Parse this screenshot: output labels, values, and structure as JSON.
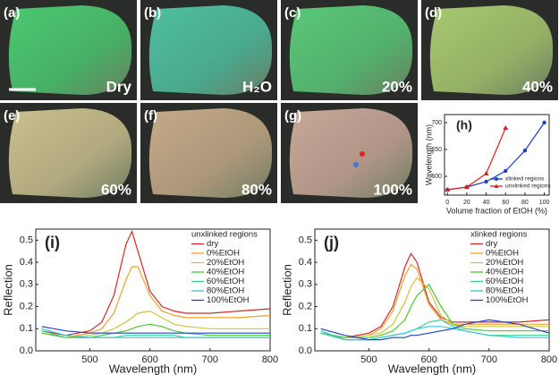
{
  "photos": [
    {
      "label": "(a)",
      "caption": "Dry"
    },
    {
      "label": "(b)",
      "caption": "H₂O"
    },
    {
      "label": "(c)",
      "caption": "20%"
    },
    {
      "label": "(d)",
      "caption": "40%"
    },
    {
      "label": "(e)",
      "caption": "60%"
    },
    {
      "label": "(f)",
      "caption": "80%"
    },
    {
      "label": "(g)",
      "caption": "100%"
    }
  ],
  "chart_data": [
    {
      "type": "line",
      "panel_label": "(h)",
      "xlabel": "Volume fraction of EtOH (%)",
      "ylabel": "Wavelength (nm)",
      "x": [
        0,
        20,
        40,
        60,
        80,
        100
      ],
      "xlim": [
        -3,
        105
      ],
      "ylim": [
        565,
        715
      ],
      "xticks": [
        0,
        20,
        40,
        60,
        80,
        100
      ],
      "yticks": [
        600,
        650,
        700
      ],
      "legend": "lower right",
      "series": [
        {
          "name": "xlinked regions",
          "color": "#1f3fbf",
          "marker": "circle",
          "values": [
            575,
            580,
            590,
            610,
            648,
            700
          ]
        },
        {
          "name": "unxlinked regions",
          "color": "#e02020",
          "marker": "triangle",
          "values": [
            575,
            580,
            605,
            690,
            null,
            null
          ]
        }
      ]
    },
    {
      "type": "line",
      "panel_label": "(i)",
      "xlabel": "Wavelength (nm)",
      "ylabel": "Reflection",
      "legend_title": "unxlinked regions",
      "legend": "upper right",
      "x": [
        420,
        460,
        500,
        520,
        540,
        560,
        570,
        580,
        600,
        620,
        640,
        660,
        700,
        750,
        800
      ],
      "xlim": [
        410,
        800
      ],
      "ylim": [
        0,
        0.55
      ],
      "xticks": [
        500,
        600,
        700,
        800
      ],
      "yticks": [
        {
          "value": 0,
          "label": "0.0"
        },
        {
          "value": 0.1,
          "label": "0.1"
        },
        {
          "value": 0.2,
          "label": "0.2"
        },
        {
          "value": 0.3,
          "label": "0.3"
        },
        {
          "value": 0.4,
          "label": "0.4"
        },
        {
          "value": 0.5,
          "label": "0.5"
        }
      ],
      "series": [
        {
          "name": "dry",
          "color": "#d62728",
          "values": [
            0.09,
            0.07,
            0.09,
            0.13,
            0.25,
            0.48,
            0.54,
            0.45,
            0.27,
            0.2,
            0.18,
            0.17,
            0.17,
            0.18,
            0.19
          ]
        },
        {
          "name": "0%EtOH",
          "color": "#f0a030",
          "values": [
            0.08,
            0.06,
            0.08,
            0.1,
            0.17,
            0.32,
            0.38,
            0.38,
            0.25,
            0.18,
            0.16,
            0.15,
            0.15,
            0.15,
            0.16
          ]
        },
        {
          "name": "20%EtOH",
          "color": "#c8c83a",
          "values": [
            0.08,
            0.06,
            0.07,
            0.08,
            0.1,
            0.13,
            0.15,
            0.17,
            0.18,
            0.15,
            0.12,
            0.11,
            0.1,
            0.1,
            0.1
          ]
        },
        {
          "name": "40%EtOH",
          "color": "#4cc82e",
          "values": [
            0.08,
            0.06,
            0.06,
            0.07,
            0.08,
            0.09,
            0.1,
            0.11,
            0.12,
            0.11,
            0.09,
            0.08,
            0.07,
            0.07,
            0.07
          ]
        },
        {
          "name": "60%EtOH",
          "color": "#3cd28c",
          "values": [
            0.09,
            0.06,
            0.06,
            0.06,
            0.06,
            0.07,
            0.07,
            0.07,
            0.07,
            0.07,
            0.07,
            0.06,
            0.06,
            0.06,
            0.06
          ]
        },
        {
          "name": "80%EtOH",
          "color": "#30c8d8",
          "values": [
            0.1,
            0.07,
            0.06,
            0.06,
            0.06,
            0.06,
            0.06,
            0.06,
            0.06,
            0.06,
            0.06,
            0.06,
            0.06,
            0.06,
            0.06
          ]
        },
        {
          "name": "100%EtOH",
          "color": "#2244cc",
          "values": [
            0.11,
            0.09,
            0.08,
            0.08,
            0.08,
            0.08,
            0.08,
            0.08,
            0.08,
            0.08,
            0.08,
            0.08,
            0.08,
            0.08,
            0.08
          ]
        }
      ]
    },
    {
      "type": "line",
      "panel_label": "(j)",
      "xlabel": "Wavelength (nm)",
      "ylabel": "Reflection",
      "legend_title": "xlinked regions",
      "legend": "upper right",
      "x": [
        420,
        460,
        500,
        520,
        540,
        560,
        570,
        580,
        600,
        620,
        640,
        660,
        700,
        750,
        800
      ],
      "xlim": [
        410,
        800
      ],
      "ylim": [
        0,
        0.55
      ],
      "xticks": [
        500,
        600,
        700,
        800
      ],
      "yticks": [
        {
          "value": 0,
          "label": "0.0"
        },
        {
          "value": 0.1,
          "label": "0.1"
        },
        {
          "value": 0.2,
          "label": "0.2"
        },
        {
          "value": 0.3,
          "label": "0.3"
        },
        {
          "value": 0.4,
          "label": "0.4"
        },
        {
          "value": 0.5,
          "label": "0.5"
        }
      ],
      "series": [
        {
          "name": "dry",
          "color": "#d62728",
          "values": [
            0.08,
            0.06,
            0.08,
            0.11,
            0.2,
            0.38,
            0.44,
            0.4,
            0.22,
            0.15,
            0.13,
            0.13,
            0.13,
            0.13,
            0.14
          ]
        },
        {
          "name": "0%EtOH",
          "color": "#f0a030",
          "values": [
            0.08,
            0.06,
            0.07,
            0.1,
            0.18,
            0.34,
            0.39,
            0.37,
            0.21,
            0.14,
            0.12,
            0.12,
            0.12,
            0.12,
            0.12
          ]
        },
        {
          "name": "20%EtOH",
          "color": "#c8c83a",
          "values": [
            0.08,
            0.06,
            0.07,
            0.08,
            0.12,
            0.22,
            0.29,
            0.33,
            0.28,
            0.16,
            0.12,
            0.11,
            0.11,
            0.11,
            0.11
          ]
        },
        {
          "name": "40%EtOH",
          "color": "#4cc82e",
          "values": [
            0.08,
            0.06,
            0.06,
            0.07,
            0.09,
            0.14,
            0.2,
            0.25,
            0.3,
            0.2,
            0.12,
            0.1,
            0.09,
            0.09,
            0.09
          ]
        },
        {
          "name": "60%EtOH",
          "color": "#3cd28c",
          "values": [
            0.08,
            0.05,
            0.05,
            0.06,
            0.07,
            0.08,
            0.09,
            0.1,
            0.13,
            0.14,
            0.11,
            0.09,
            0.07,
            0.07,
            0.07
          ]
        },
        {
          "name": "80%EtOH",
          "color": "#30c8d8",
          "values": [
            0.09,
            0.05,
            0.05,
            0.06,
            0.07,
            0.08,
            0.09,
            0.1,
            0.11,
            0.11,
            0.1,
            0.09,
            0.07,
            0.06,
            0.06
          ]
        },
        {
          "name": "100%EtOH",
          "color": "#2244cc",
          "values": [
            0.1,
            0.07,
            0.05,
            0.05,
            0.06,
            0.06,
            0.07,
            0.07,
            0.08,
            0.09,
            0.1,
            0.12,
            0.14,
            0.12,
            0.08
          ]
        }
      ]
    }
  ]
}
